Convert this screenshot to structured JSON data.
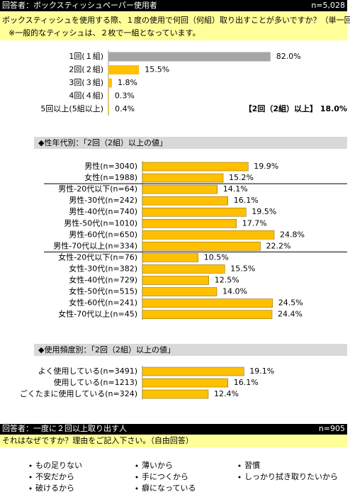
{
  "header": {
    "respondents": "回答者：ボックスティッシュペーパー使用者",
    "n": "n=5,028"
  },
  "question": {
    "text": "ボックスティッシュを使用する際、１度の使用で何回（何組）取り出すことが多いですか？（単一回答）",
    "note": "※一般的なティッシュは、２枚で一組となっています。"
  },
  "chart_data": [
    {
      "type": "bar",
      "categories": [
        "1回(１組)",
        "2回(２組)",
        "3回(３組)",
        "4回(４組)",
        "5回以上(5組以上)"
      ],
      "values": [
        82.0,
        15.5,
        1.8,
        0.3,
        0.4
      ],
      "value_labels": [
        "82.0%",
        "15.5%",
        "1.8%",
        "0.3%",
        "0.4%"
      ],
      "colors": [
        "#a6a6a6",
        "#ffc000",
        "#ffc000",
        "#ffc000",
        "#ffc000"
      ],
      "annotation": "【2回（2組）以上】 18.0%"
    },
    {
      "type": "bar",
      "title": "◆性年代別：「2回（2組）以上の値」",
      "categories": [
        "男性(n=3040)",
        "女性(n=1988)",
        "男性-20代以下(n=64)",
        "男性-30代(n=242)",
        "男性-40代(n=740)",
        "男性-50代(n=1010)",
        "男性-60代(n=650)",
        "男性-70代以上(n=334)",
        "女性-20代以下(n=76)",
        "女性-30代(n=382)",
        "女性-40代(n=729)",
        "女性-50代(n=515)",
        "女性-60代(n=241)",
        "女性-70代以上(n=45)"
      ],
      "values": [
        19.9,
        15.2,
        14.1,
        16.1,
        19.5,
        17.7,
        24.8,
        22.2,
        10.5,
        15.5,
        12.5,
        14.0,
        24.5,
        24.4
      ],
      "value_labels": [
        "19.9%",
        "15.2%",
        "14.1%",
        "16.1%",
        "19.5%",
        "17.7%",
        "24.8%",
        "22.2%",
        "10.5%",
        "15.5%",
        "12.5%",
        "14.0%",
        "24.5%",
        "24.4%"
      ],
      "color": "#ffc000"
    },
    {
      "type": "bar",
      "title": "◆使用頻度別：「2回（2組）以上の値」",
      "categories": [
        "よく使用している(n=3491)",
        "使用している(n=1213)",
        "ごくたまに使用している(n=324)"
      ],
      "values": [
        19.1,
        16.1,
        12.4
      ],
      "value_labels": [
        "19.1%",
        "16.1%",
        "12.4%"
      ],
      "color": "#ffc000"
    }
  ],
  "header2": {
    "respondents": "回答者：一度に２回以上取り出す人",
    "n": "n=905"
  },
  "question2": {
    "text": "それはなぜですか？理由をご記入下さい。（自由回答）"
  },
  "reasons": [
    [
      "もの足りない",
      "不安だから",
      "破けるから"
    ],
    [
      "薄いから",
      "手につくから",
      "癖になっている"
    ],
    [
      "習慣",
      "しっかり拭き取りたいから"
    ]
  ]
}
